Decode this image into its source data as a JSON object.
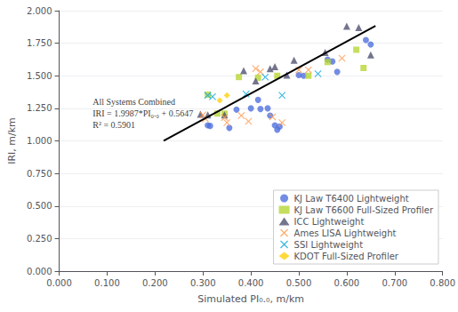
{
  "chart_data": {
    "type": "scatter",
    "xlabel": "Simulated PI₀.₀, m/km",
    "ylabel": "IRI, m/km",
    "xlim": [
      0.0,
      0.8
    ],
    "ylim": [
      0.0,
      2.0
    ],
    "xticks": [
      {
        "value": 0.0,
        "label": "0.000"
      },
      {
        "value": 0.1,
        "label": "0.100"
      },
      {
        "value": 0.2,
        "label": "0.200"
      },
      {
        "value": 0.3,
        "label": "0.300"
      },
      {
        "value": 0.4,
        "label": "0.400"
      },
      {
        "value": 0.5,
        "label": "0.500"
      },
      {
        "value": 0.6,
        "label": "0.600"
      },
      {
        "value": 0.7,
        "label": "0.700"
      },
      {
        "value": 0.8,
        "label": "0.800"
      }
    ],
    "yticks": [
      {
        "value": 0.0,
        "label": "0.000"
      },
      {
        "value": 0.25,
        "label": "0.250"
      },
      {
        "value": 0.5,
        "label": "0.500"
      },
      {
        "value": 0.75,
        "label": "0.750"
      },
      {
        "value": 1.0,
        "label": "1.000"
      },
      {
        "value": 1.25,
        "label": "1.250"
      },
      {
        "value": 1.5,
        "label": "1.500"
      },
      {
        "value": 1.75,
        "label": "1.750"
      },
      {
        "value": 2.0,
        "label": "2.000"
      }
    ],
    "grid": "y",
    "legend": "lower right",
    "series": [
      {
        "name": "KJ Law T6400 Lightweight",
        "type": "scatter",
        "marker": "circle",
        "x": [
          0.31,
          0.315,
          0.355,
          0.37,
          0.4,
          0.415,
          0.42,
          0.435,
          0.44,
          0.45,
          0.455,
          0.46,
          0.5,
          0.51,
          0.56,
          0.57,
          0.58,
          0.64,
          0.65
        ],
        "values": [
          1.12,
          1.115,
          1.1,
          1.24,
          1.25,
          1.315,
          1.245,
          1.25,
          1.195,
          1.12,
          1.085,
          1.11,
          1.505,
          1.5,
          1.625,
          1.61,
          1.53,
          1.775,
          1.74
        ]
      },
      {
        "name": "KJ Law T6600 Full-Sized Profiler",
        "type": "scatter",
        "marker": "square",
        "x": [
          0.31,
          0.33,
          0.345,
          0.375,
          0.415,
          0.455,
          0.52,
          0.56,
          0.62,
          0.635
        ],
        "values": [
          1.355,
          1.21,
          1.21,
          1.49,
          1.485,
          1.5,
          1.5,
          1.605,
          1.7,
          1.56
        ]
      },
      {
        "name": "ICC Lightweight",
        "type": "scatter",
        "marker": "triangle",
        "x": [
          0.295,
          0.31,
          0.345,
          0.385,
          0.41,
          0.44,
          0.45,
          0.475,
          0.49,
          0.555,
          0.6,
          0.625,
          0.65
        ],
        "values": [
          1.205,
          1.2,
          1.2,
          1.54,
          1.46,
          1.555,
          1.57,
          1.505,
          1.62,
          1.68,
          1.88,
          1.87,
          1.66
        ]
      },
      {
        "name": "Ames LISA Lightweight",
        "type": "scatter",
        "marker": "x",
        "x": [
          0.3,
          0.305,
          0.345,
          0.35,
          0.38,
          0.395,
          0.41,
          0.42,
          0.445,
          0.465,
          0.5,
          0.52,
          0.59
        ],
        "values": [
          1.2,
          1.17,
          1.18,
          1.14,
          1.195,
          1.15,
          1.555,
          1.53,
          1.185,
          1.14,
          1.545,
          1.545,
          1.635
        ]
      },
      {
        "name": "SSI Lightweight",
        "type": "scatter",
        "marker": "x",
        "x": [
          0.31,
          0.32,
          0.39,
          0.43,
          0.465,
          0.54
        ],
        "values": [
          1.35,
          1.34,
          1.36,
          1.49,
          1.35,
          1.515
        ]
      },
      {
        "name": "KDOT Full-Sized Profiler",
        "type": "scatter",
        "marker": "diamond",
        "x": [
          0.335,
          0.35
        ],
        "values": [
          1.31,
          1.35
        ]
      },
      {
        "type": "line",
        "color": "#000000",
        "x": [
          0.218,
          0.66
        ],
        "values": [
          1.0004166,
          1.883842
        ]
      }
    ],
    "annotations": [
      {
        "text": "All Systems Combined\nIRI = 1.9987*PI₀.₀ + 0.5647\nR² = 0.5901",
        "x": 0.07,
        "y": 1.08
      }
    ]
  }
}
